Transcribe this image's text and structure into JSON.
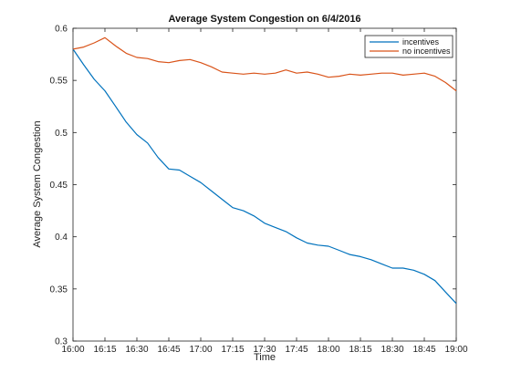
{
  "chart_data": {
    "type": "line",
    "title": "Average System Congestion on 6/4/2016",
    "xlabel": "Time",
    "ylabel": "Average System Congestion",
    "x_ticks": [
      "16:00",
      "16:15",
      "16:30",
      "16:45",
      "17:00",
      "17:15",
      "17:30",
      "17:45",
      "18:00",
      "18:15",
      "18:30",
      "18:45",
      "19:00"
    ],
    "y_ticks": [
      "0.3",
      "0.35",
      "0.4",
      "0.45",
      "0.5",
      "0.55",
      "0.6"
    ],
    "xlim": [
      "16:00",
      "19:00"
    ],
    "ylim": [
      0.3,
      0.6
    ],
    "grid": false,
    "legend_position": "top-right",
    "x": [
      "16:00",
      "16:05",
      "16:10",
      "16:15",
      "16:20",
      "16:25",
      "16:30",
      "16:35",
      "16:40",
      "16:45",
      "16:50",
      "16:55",
      "17:00",
      "17:05",
      "17:10",
      "17:15",
      "17:20",
      "17:25",
      "17:30",
      "17:35",
      "17:40",
      "17:45",
      "17:50",
      "17:55",
      "18:00",
      "18:05",
      "18:10",
      "18:15",
      "18:20",
      "18:25",
      "18:30",
      "18:35",
      "18:40",
      "18:45",
      "18:50",
      "18:55",
      "19:00"
    ],
    "series": [
      {
        "name": "incentives",
        "color": "#0072bd",
        "values": [
          0.58,
          0.565,
          0.551,
          0.54,
          0.525,
          0.51,
          0.498,
          0.49,
          0.476,
          0.465,
          0.464,
          0.458,
          0.452,
          0.444,
          0.436,
          0.428,
          0.425,
          0.42,
          0.413,
          0.409,
          0.405,
          0.399,
          0.394,
          0.392,
          0.391,
          0.387,
          0.383,
          0.381,
          0.378,
          0.374,
          0.37,
          0.37,
          0.368,
          0.364,
          0.358,
          0.347,
          0.336
        ]
      },
      {
        "name": "no incentives",
        "color": "#d95319",
        "values": [
          0.58,
          0.582,
          0.586,
          0.591,
          0.583,
          0.576,
          0.572,
          0.571,
          0.568,
          0.567,
          0.569,
          0.57,
          0.567,
          0.563,
          0.558,
          0.557,
          0.556,
          0.557,
          0.556,
          0.557,
          0.56,
          0.557,
          0.558,
          0.556,
          0.553,
          0.554,
          0.556,
          0.555,
          0.556,
          0.557,
          0.557,
          0.555,
          0.556,
          0.557,
          0.554,
          0.548,
          0.54
        ]
      }
    ]
  }
}
